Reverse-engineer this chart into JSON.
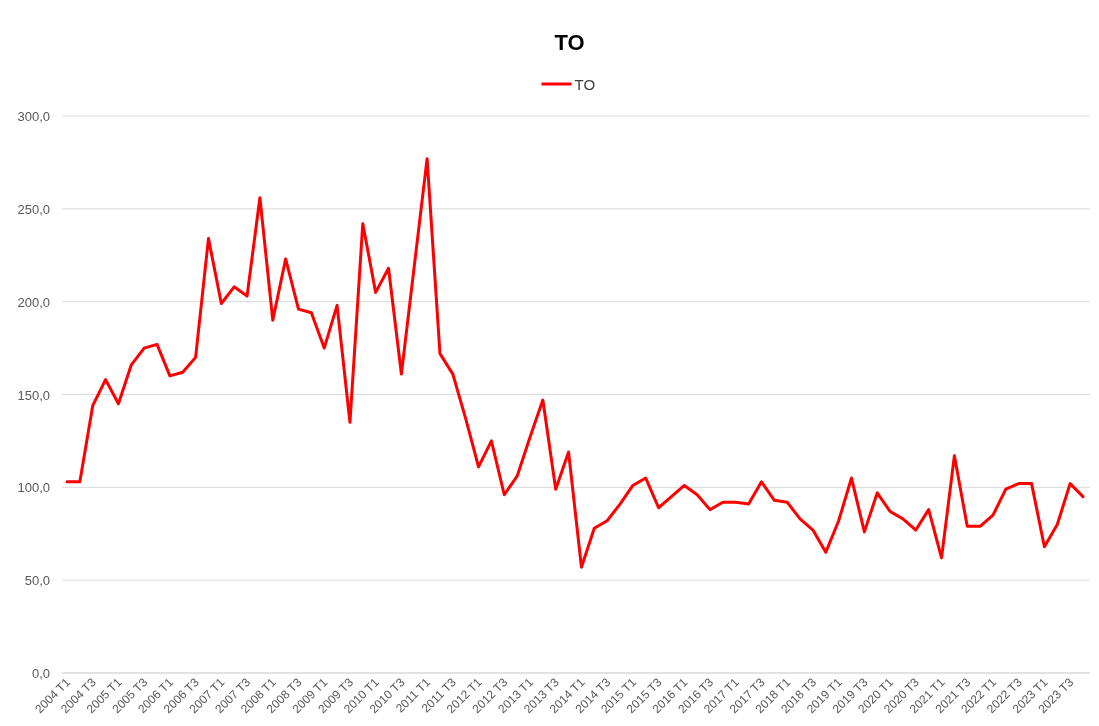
{
  "chart_data": {
    "type": "line",
    "title": "TO",
    "categories": [
      "2004 T1",
      null,
      "2004 T3",
      null,
      "2005 T1",
      null,
      "2005 T3",
      null,
      "2006 T1",
      null,
      "2006 T3",
      null,
      "2007 T1",
      null,
      "2007 T3",
      null,
      "2008 T1",
      null,
      "2008 T3",
      null,
      "2009 T1",
      null,
      "2009 T3",
      null,
      "2010 T1",
      null,
      "2010 T3",
      null,
      "2011 T1",
      null,
      "2011 T3",
      null,
      "2012 T1",
      null,
      "2012 T3",
      null,
      "2013 T1",
      null,
      "2013 T3",
      null,
      "2014 T1",
      null,
      "2014 T3",
      null,
      "2015 T1",
      null,
      "2015 T3",
      null,
      "2016 T1",
      null,
      "2016 T3",
      null,
      "2017 T1",
      null,
      "2017 T3",
      null,
      "2018 T1",
      null,
      "2018 T3",
      null,
      "2019 T1",
      null,
      "2019 T3",
      null,
      "2020 T1",
      null,
      "2020 T3",
      null,
      "2021 T1",
      null,
      "2021 T3",
      null,
      "2022 T1",
      null,
      "2022 T3",
      null,
      "2023 T1",
      null,
      "2023 T3",
      null
    ],
    "series": [
      {
        "name": "TO",
        "color": "#ff0000",
        "values": [
          103,
          103,
          144,
          158,
          145,
          166,
          175,
          177,
          160,
          162,
          170,
          234,
          199,
          208,
          203,
          256,
          190,
          223,
          196,
          194,
          175,
          198,
          135,
          242,
          205,
          218,
          161,
          219,
          277,
          172,
          161,
          137,
          111,
          125,
          96,
          106,
          127,
          147,
          99,
          119,
          57,
          78,
          82,
          91,
          101,
          105,
          89,
          95,
          101,
          96,
          88,
          92,
          92,
          91,
          103,
          93,
          92,
          83,
          77,
          65,
          82,
          105,
          76,
          97,
          87,
          83,
          77,
          88,
          62,
          117,
          79,
          79,
          85,
          99,
          102,
          102,
          68,
          80,
          102,
          95
        ]
      }
    ],
    "ylim": [
      0,
      300
    ],
    "yticks": [
      {
        "value": 0,
        "label": "0,0"
      },
      {
        "value": 50,
        "label": "50,0"
      },
      {
        "value": 100,
        "label": "100,0"
      },
      {
        "value": 150,
        "label": "150,0"
      },
      {
        "value": 200,
        "label": "200,0"
      },
      {
        "value": 250,
        "label": "250,0"
      },
      {
        "value": 300,
        "label": "300,0"
      }
    ],
    "grid": "y",
    "legend": "top",
    "line_style": "solid",
    "marker": "none"
  }
}
